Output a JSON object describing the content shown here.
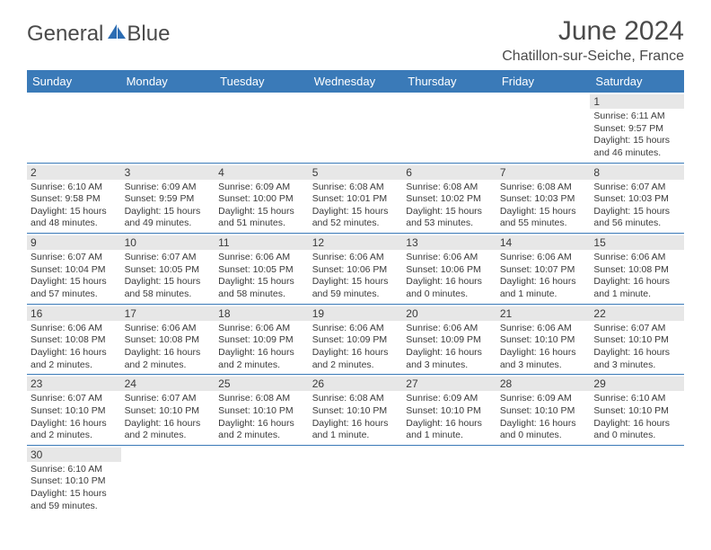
{
  "brand": {
    "name1": "General",
    "name2": "Blue"
  },
  "title": "June 2024",
  "location": "Chatillon-sur-Seiche, France",
  "colors": {
    "header_bg": "#3a7ab8",
    "header_text": "#ffffff",
    "daynum_bg": "#e7e7e7",
    "text": "#3a3a3a",
    "rule": "#3a7ab8"
  },
  "day_names": [
    "Sunday",
    "Monday",
    "Tuesday",
    "Wednesday",
    "Thursday",
    "Friday",
    "Saturday"
  ],
  "weeks": [
    [
      {
        "n": "",
        "empty": true
      },
      {
        "n": "",
        "empty": true
      },
      {
        "n": "",
        "empty": true
      },
      {
        "n": "",
        "empty": true
      },
      {
        "n": "",
        "empty": true
      },
      {
        "n": "",
        "empty": true
      },
      {
        "n": "1",
        "sr": "Sunrise: 6:11 AM",
        "ss": "Sunset: 9:57 PM",
        "dl1": "Daylight: 15 hours",
        "dl2": "and 46 minutes."
      }
    ],
    [
      {
        "n": "2",
        "sr": "Sunrise: 6:10 AM",
        "ss": "Sunset: 9:58 PM",
        "dl1": "Daylight: 15 hours",
        "dl2": "and 48 minutes."
      },
      {
        "n": "3",
        "sr": "Sunrise: 6:09 AM",
        "ss": "Sunset: 9:59 PM",
        "dl1": "Daylight: 15 hours",
        "dl2": "and 49 minutes."
      },
      {
        "n": "4",
        "sr": "Sunrise: 6:09 AM",
        "ss": "Sunset: 10:00 PM",
        "dl1": "Daylight: 15 hours",
        "dl2": "and 51 minutes."
      },
      {
        "n": "5",
        "sr": "Sunrise: 6:08 AM",
        "ss": "Sunset: 10:01 PM",
        "dl1": "Daylight: 15 hours",
        "dl2": "and 52 minutes."
      },
      {
        "n": "6",
        "sr": "Sunrise: 6:08 AM",
        "ss": "Sunset: 10:02 PM",
        "dl1": "Daylight: 15 hours",
        "dl2": "and 53 minutes."
      },
      {
        "n": "7",
        "sr": "Sunrise: 6:08 AM",
        "ss": "Sunset: 10:03 PM",
        "dl1": "Daylight: 15 hours",
        "dl2": "and 55 minutes."
      },
      {
        "n": "8",
        "sr": "Sunrise: 6:07 AM",
        "ss": "Sunset: 10:03 PM",
        "dl1": "Daylight: 15 hours",
        "dl2": "and 56 minutes."
      }
    ],
    [
      {
        "n": "9",
        "sr": "Sunrise: 6:07 AM",
        "ss": "Sunset: 10:04 PM",
        "dl1": "Daylight: 15 hours",
        "dl2": "and 57 minutes."
      },
      {
        "n": "10",
        "sr": "Sunrise: 6:07 AM",
        "ss": "Sunset: 10:05 PM",
        "dl1": "Daylight: 15 hours",
        "dl2": "and 58 minutes."
      },
      {
        "n": "11",
        "sr": "Sunrise: 6:06 AM",
        "ss": "Sunset: 10:05 PM",
        "dl1": "Daylight: 15 hours",
        "dl2": "and 58 minutes."
      },
      {
        "n": "12",
        "sr": "Sunrise: 6:06 AM",
        "ss": "Sunset: 10:06 PM",
        "dl1": "Daylight: 15 hours",
        "dl2": "and 59 minutes."
      },
      {
        "n": "13",
        "sr": "Sunrise: 6:06 AM",
        "ss": "Sunset: 10:06 PM",
        "dl1": "Daylight: 16 hours",
        "dl2": "and 0 minutes."
      },
      {
        "n": "14",
        "sr": "Sunrise: 6:06 AM",
        "ss": "Sunset: 10:07 PM",
        "dl1": "Daylight: 16 hours",
        "dl2": "and 1 minute."
      },
      {
        "n": "15",
        "sr": "Sunrise: 6:06 AM",
        "ss": "Sunset: 10:08 PM",
        "dl1": "Daylight: 16 hours",
        "dl2": "and 1 minute."
      }
    ],
    [
      {
        "n": "16",
        "sr": "Sunrise: 6:06 AM",
        "ss": "Sunset: 10:08 PM",
        "dl1": "Daylight: 16 hours",
        "dl2": "and 2 minutes."
      },
      {
        "n": "17",
        "sr": "Sunrise: 6:06 AM",
        "ss": "Sunset: 10:08 PM",
        "dl1": "Daylight: 16 hours",
        "dl2": "and 2 minutes."
      },
      {
        "n": "18",
        "sr": "Sunrise: 6:06 AM",
        "ss": "Sunset: 10:09 PM",
        "dl1": "Daylight: 16 hours",
        "dl2": "and 2 minutes."
      },
      {
        "n": "19",
        "sr": "Sunrise: 6:06 AM",
        "ss": "Sunset: 10:09 PM",
        "dl1": "Daylight: 16 hours",
        "dl2": "and 2 minutes."
      },
      {
        "n": "20",
        "sr": "Sunrise: 6:06 AM",
        "ss": "Sunset: 10:09 PM",
        "dl1": "Daylight: 16 hours",
        "dl2": "and 3 minutes."
      },
      {
        "n": "21",
        "sr": "Sunrise: 6:06 AM",
        "ss": "Sunset: 10:10 PM",
        "dl1": "Daylight: 16 hours",
        "dl2": "and 3 minutes."
      },
      {
        "n": "22",
        "sr": "Sunrise: 6:07 AM",
        "ss": "Sunset: 10:10 PM",
        "dl1": "Daylight: 16 hours",
        "dl2": "and 3 minutes."
      }
    ],
    [
      {
        "n": "23",
        "sr": "Sunrise: 6:07 AM",
        "ss": "Sunset: 10:10 PM",
        "dl1": "Daylight: 16 hours",
        "dl2": "and 2 minutes."
      },
      {
        "n": "24",
        "sr": "Sunrise: 6:07 AM",
        "ss": "Sunset: 10:10 PM",
        "dl1": "Daylight: 16 hours",
        "dl2": "and 2 minutes."
      },
      {
        "n": "25",
        "sr": "Sunrise: 6:08 AM",
        "ss": "Sunset: 10:10 PM",
        "dl1": "Daylight: 16 hours",
        "dl2": "and 2 minutes."
      },
      {
        "n": "26",
        "sr": "Sunrise: 6:08 AM",
        "ss": "Sunset: 10:10 PM",
        "dl1": "Daylight: 16 hours",
        "dl2": "and 1 minute."
      },
      {
        "n": "27",
        "sr": "Sunrise: 6:09 AM",
        "ss": "Sunset: 10:10 PM",
        "dl1": "Daylight: 16 hours",
        "dl2": "and 1 minute."
      },
      {
        "n": "28",
        "sr": "Sunrise: 6:09 AM",
        "ss": "Sunset: 10:10 PM",
        "dl1": "Daylight: 16 hours",
        "dl2": "and 0 minutes."
      },
      {
        "n": "29",
        "sr": "Sunrise: 6:10 AM",
        "ss": "Sunset: 10:10 PM",
        "dl1": "Daylight: 16 hours",
        "dl2": "and 0 minutes."
      }
    ],
    [
      {
        "n": "30",
        "sr": "Sunrise: 6:10 AM",
        "ss": "Sunset: 10:10 PM",
        "dl1": "Daylight: 15 hours",
        "dl2": "and 59 minutes."
      },
      {
        "n": "",
        "empty": true
      },
      {
        "n": "",
        "empty": true
      },
      {
        "n": "",
        "empty": true
      },
      {
        "n": "",
        "empty": true
      },
      {
        "n": "",
        "empty": true
      },
      {
        "n": "",
        "empty": true
      }
    ]
  ]
}
